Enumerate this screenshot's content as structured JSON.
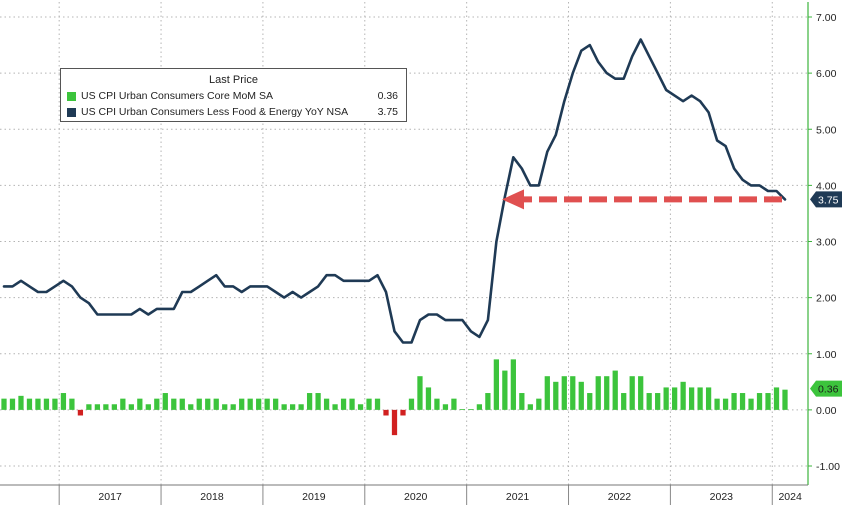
{
  "colors": {
    "line": "#1f3a55",
    "bar_positive": "#3cc43c",
    "bar_negative": "#d12020",
    "arrow": "#e05050",
    "axis_green": "#3cb43c",
    "grid": "#b4b4b4",
    "label_box": "#1f3a55"
  },
  "legend": {
    "title": "Last Price",
    "items": [
      {
        "name": "US CPI Urban Consumers Core MoM SA",
        "value": "0.36",
        "color": "#3cc43c"
      },
      {
        "name": "US CPI Urban Consumers Less Food & Energy YoY NSA",
        "value": "3.75",
        "color": "#1f3a55"
      }
    ]
  },
  "last_labels": {
    "line": "3.75",
    "bar": "0.36"
  },
  "chart_data": {
    "type": "line",
    "x_start": "2016-06",
    "x_end": "2024-02",
    "xlabels": [
      "2017",
      "2018",
      "2019",
      "2020",
      "2021",
      "2022",
      "2023",
      "2024"
    ],
    "ylim": [
      -1.0,
      7.0
    ],
    "yticks": [
      "7.00",
      "6.00",
      "5.00",
      "4.00",
      "3.00",
      "2.00",
      "1.00",
      "0.00",
      "-1.00"
    ],
    "grid": true,
    "legend_position": "top-left",
    "series": [
      {
        "name": "US CPI Urban Consumers Less Food & Energy YoY NSA",
        "type": "line",
        "x": [
          "2016-06",
          "2016-07",
          "2016-08",
          "2016-09",
          "2016-10",
          "2016-11",
          "2016-12",
          "2017-01",
          "2017-02",
          "2017-03",
          "2017-04",
          "2017-05",
          "2017-06",
          "2017-07",
          "2017-08",
          "2017-09",
          "2017-10",
          "2017-11",
          "2017-12",
          "2018-01",
          "2018-02",
          "2018-03",
          "2018-04",
          "2018-05",
          "2018-06",
          "2018-07",
          "2018-08",
          "2018-09",
          "2018-10",
          "2018-11",
          "2018-12",
          "2019-01",
          "2019-02",
          "2019-03",
          "2019-04",
          "2019-05",
          "2019-06",
          "2019-07",
          "2019-08",
          "2019-09",
          "2019-10",
          "2019-11",
          "2019-12",
          "2020-01",
          "2020-02",
          "2020-03",
          "2020-04",
          "2020-05",
          "2020-06",
          "2020-07",
          "2020-08",
          "2020-09",
          "2020-10",
          "2020-11",
          "2020-12",
          "2021-01",
          "2021-02",
          "2021-03",
          "2021-04",
          "2021-05",
          "2021-06",
          "2021-07",
          "2021-08",
          "2021-09",
          "2021-10",
          "2021-11",
          "2021-12",
          "2022-01",
          "2022-02",
          "2022-03",
          "2022-04",
          "2022-05",
          "2022-06",
          "2022-07",
          "2022-08",
          "2022-09",
          "2022-10",
          "2022-11",
          "2022-12",
          "2023-01",
          "2023-02",
          "2023-03",
          "2023-04",
          "2023-05",
          "2023-06",
          "2023-07",
          "2023-08",
          "2023-09",
          "2023-10",
          "2023-11",
          "2023-12",
          "2024-01",
          "2024-02"
        ],
        "values": [
          2.2,
          2.2,
          2.3,
          2.2,
          2.1,
          2.1,
          2.2,
          2.3,
          2.2,
          2.0,
          1.9,
          1.7,
          1.7,
          1.7,
          1.7,
          1.7,
          1.8,
          1.7,
          1.8,
          1.8,
          1.8,
          2.1,
          2.1,
          2.2,
          2.3,
          2.4,
          2.2,
          2.2,
          2.1,
          2.2,
          2.2,
          2.2,
          2.1,
          2.0,
          2.1,
          2.0,
          2.1,
          2.2,
          2.4,
          2.4,
          2.3,
          2.3,
          2.3,
          2.3,
          2.4,
          2.1,
          1.4,
          1.2,
          1.2,
          1.6,
          1.7,
          1.7,
          1.6,
          1.6,
          1.6,
          1.4,
          1.3,
          1.6,
          3.0,
          3.8,
          4.5,
          4.3,
          4.0,
          4.0,
          4.6,
          4.9,
          5.5,
          6.0,
          6.4,
          6.5,
          6.2,
          6.0,
          5.9,
          5.9,
          6.3,
          6.6,
          6.3,
          6.0,
          5.7,
          5.6,
          5.5,
          5.6,
          5.5,
          5.3,
          4.8,
          4.7,
          4.3,
          4.1,
          4.0,
          4.0,
          3.9,
          3.9,
          3.75
        ]
      },
      {
        "name": "US CPI Urban Consumers Core MoM SA",
        "type": "bar",
        "x": [
          "2016-06",
          "2016-07",
          "2016-08",
          "2016-09",
          "2016-10",
          "2016-11",
          "2016-12",
          "2017-01",
          "2017-02",
          "2017-03",
          "2017-04",
          "2017-05",
          "2017-06",
          "2017-07",
          "2017-08",
          "2017-09",
          "2017-10",
          "2017-11",
          "2017-12",
          "2018-01",
          "2018-02",
          "2018-03",
          "2018-04",
          "2018-05",
          "2018-06",
          "2018-07",
          "2018-08",
          "2018-09",
          "2018-10",
          "2018-11",
          "2018-12",
          "2019-01",
          "2019-02",
          "2019-03",
          "2019-04",
          "2019-05",
          "2019-06",
          "2019-07",
          "2019-08",
          "2019-09",
          "2019-10",
          "2019-11",
          "2019-12",
          "2020-01",
          "2020-02",
          "2020-03",
          "2020-04",
          "2020-05",
          "2020-06",
          "2020-07",
          "2020-08",
          "2020-09",
          "2020-10",
          "2020-11",
          "2020-12",
          "2021-01",
          "2021-02",
          "2021-03",
          "2021-04",
          "2021-05",
          "2021-06",
          "2021-07",
          "2021-08",
          "2021-09",
          "2021-10",
          "2021-11",
          "2021-12",
          "2022-01",
          "2022-02",
          "2022-03",
          "2022-04",
          "2022-05",
          "2022-06",
          "2022-07",
          "2022-08",
          "2022-09",
          "2022-10",
          "2022-11",
          "2022-12",
          "2023-01",
          "2023-02",
          "2023-03",
          "2023-04",
          "2023-05",
          "2023-06",
          "2023-07",
          "2023-08",
          "2023-09",
          "2023-10",
          "2023-11",
          "2023-12",
          "2024-01",
          "2024-02"
        ],
        "values": [
          0.2,
          0.2,
          0.25,
          0.2,
          0.2,
          0.2,
          0.2,
          0.3,
          0.2,
          -0.1,
          0.1,
          0.1,
          0.1,
          0.1,
          0.2,
          0.1,
          0.2,
          0.1,
          0.2,
          0.3,
          0.2,
          0.2,
          0.1,
          0.2,
          0.2,
          0.2,
          0.1,
          0.1,
          0.2,
          0.2,
          0.2,
          0.2,
          0.2,
          0.1,
          0.1,
          0.1,
          0.3,
          0.3,
          0.2,
          0.1,
          0.2,
          0.2,
          0.1,
          0.2,
          0.2,
          -0.1,
          -0.45,
          -0.1,
          0.2,
          0.6,
          0.4,
          0.2,
          0.1,
          0.2,
          0.0,
          0.0,
          0.1,
          0.3,
          0.9,
          0.7,
          0.9,
          0.3,
          0.1,
          0.2,
          0.6,
          0.5,
          0.6,
          0.6,
          0.5,
          0.3,
          0.6,
          0.6,
          0.7,
          0.3,
          0.6,
          0.6,
          0.3,
          0.3,
          0.4,
          0.4,
          0.5,
          0.4,
          0.4,
          0.4,
          0.2,
          0.2,
          0.3,
          0.3,
          0.2,
          0.3,
          0.3,
          0.4,
          0.36
        ]
      }
    ]
  }
}
